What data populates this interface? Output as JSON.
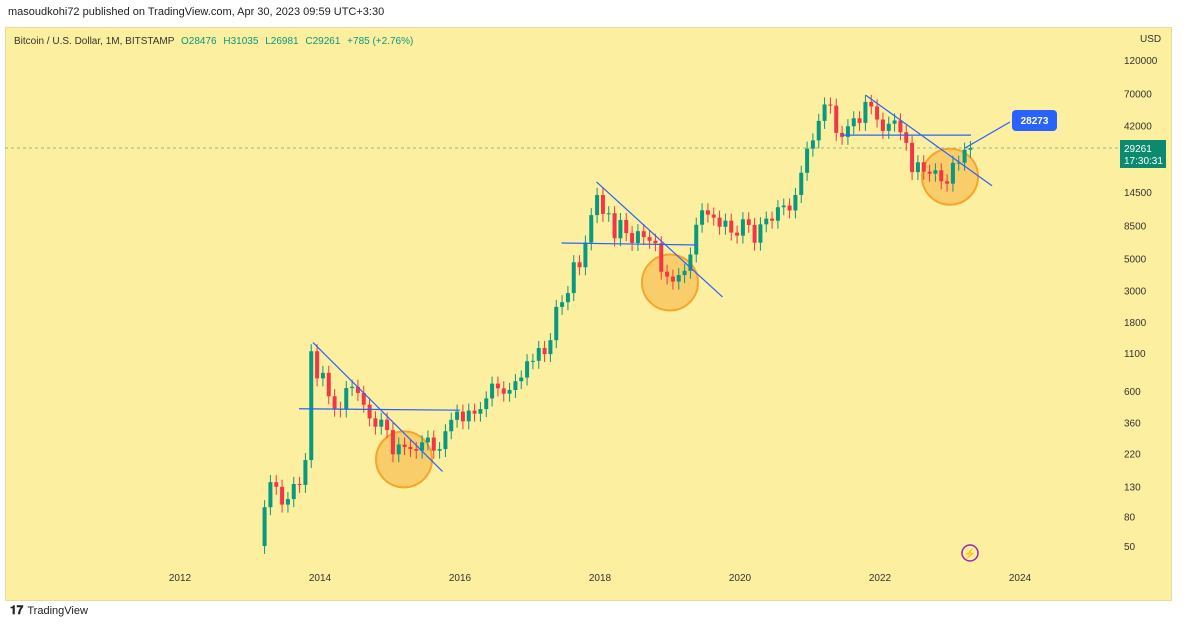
{
  "header": {
    "published": "masoudkohi72 published on TradingView.com, Apr 30, 2023 09:59 UTC+3:30"
  },
  "legend": {
    "symbol": "Bitcoin / U.S. Dollar, 1M, BITSTAMP",
    "open": "O28476",
    "high": "H31035",
    "low": "L26981",
    "close": "C29261",
    "change": "+785 (+2.76%)"
  },
  "price_axis": {
    "currency": "USD",
    "ticks": [
      "120000",
      "70000",
      "42000",
      "14500",
      "8500",
      "5000",
      "3000",
      "1800",
      "1100",
      "600",
      "360",
      "220",
      "130",
      "80",
      "50"
    ]
  },
  "time_axis": {
    "ticks": [
      "2012",
      "2014",
      "2016",
      "2018",
      "2020",
      "2022",
      "2024"
    ]
  },
  "last_price": {
    "price": "29261",
    "countdown": "17:30:31"
  },
  "annotation_label": "28273",
  "footer": {
    "brand": "TradingView"
  },
  "colors": {
    "up": "#089981",
    "down": "#f23645",
    "line": "#2962ff",
    "bg": "#fcef9f",
    "circle": "#f7a52a"
  },
  "chart_data": {
    "type": "candlestick",
    "scale": "log",
    "start": "2013-03",
    "interval": "1M",
    "first_open": 50,
    "close": [
      93,
      139,
      129,
      97,
      106,
      135,
      133,
      198,
      1130,
      732,
      800,
      550,
      450,
      445,
      627,
      640,
      580,
      480,
      386,
      338,
      378,
      320,
      217,
      254,
      244,
      236,
      230,
      263,
      284,
      230,
      236,
      314,
      377,
      430,
      368,
      437,
      416,
      448,
      531,
      673,
      624,
      573,
      608,
      700,
      742,
      963,
      970,
      1190,
      1080,
      1350,
      2300,
      2480,
      2870,
      4700,
      4340,
      6450,
      10000,
      13800,
      10200,
      10300,
      6900,
      9240,
      7500,
      6400,
      7730,
      7030,
      6630,
      6370,
      4040,
      3740,
      3450,
      3830,
      4100,
      5320,
      8570,
      10800,
      10080,
      9600,
      8300,
      9150,
      7560,
      7200,
      9350,
      8540,
      6430,
      8630,
      9450,
      9140,
      11350,
      11650,
      10780,
      13800,
      19700,
      29000,
      33100,
      45200,
      58800,
      57700,
      37300,
      35000,
      41500,
      47100,
      43800,
      61300,
      57000,
      46200,
      38500,
      43200,
      45500,
      37700,
      31800,
      19900,
      23300,
      20050,
      19400,
      20500,
      17200,
      16550,
      23100,
      23150,
      28500,
      29261
    ],
    "trendlines": [
      {
        "from": [
          2013.9,
          1300
        ],
        "to": [
          2015.75,
          165
        ]
      },
      {
        "from": [
          2013.7,
          450
        ],
        "to": [
          2016.0,
          440
        ]
      },
      {
        "from": [
          2017.95,
          17000
        ],
        "to": [
          2019.75,
          2700
        ]
      },
      {
        "from": [
          2017.45,
          6400
        ],
        "to": [
          2019.4,
          6200
        ]
      },
      {
        "from": [
          2021.8,
          68000
        ],
        "to": [
          2023.6,
          16000
        ]
      },
      {
        "from": [
          2021.45,
          36000
        ],
        "to": [
          2023.3,
          36000
        ]
      }
    ],
    "circles": [
      [
        2015.2,
        200
      ],
      [
        2019.0,
        3400
      ],
      [
        2023.0,
        18500
      ]
    ],
    "ylim": [
      50,
      120000
    ],
    "xlim": [
      2011,
      2025
    ]
  }
}
